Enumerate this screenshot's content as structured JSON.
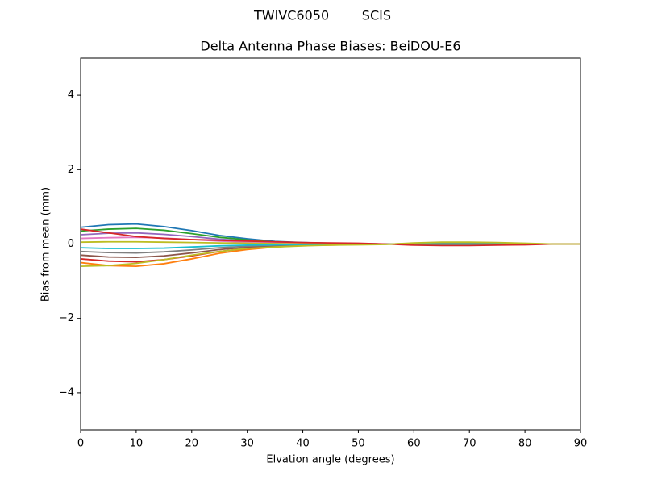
{
  "chart_data": {
    "type": "line",
    "suptitle": "TWIVC6050        SCIS",
    "title": "Delta Antenna Phase Biases: BeiDOU-E6",
    "xlabel": "Elvation angle (degrees)",
    "ylabel": "Bias from mean (mm)",
    "x": [
      0,
      5,
      10,
      15,
      20,
      25,
      30,
      35,
      40,
      45,
      50,
      55,
      60,
      65,
      70,
      75,
      80,
      85,
      90
    ],
    "xlim": [
      0,
      90
    ],
    "xticks": [
      0,
      10,
      20,
      30,
      40,
      50,
      60,
      70,
      80,
      90
    ],
    "ylim": [
      -5,
      5
    ],
    "yticks": [
      {
        "value": -4,
        "label": "−4"
      },
      {
        "value": -2,
        "label": "−2"
      },
      0,
      2,
      4
    ],
    "series": [
      {
        "color": "#1f77b4",
        "values": [
          0.45,
          0.52,
          0.54,
          0.47,
          0.36,
          0.23,
          0.14,
          0.07,
          0.04,
          0.02,
          0.01,
          0,
          -0.01,
          -0.01,
          -0.01,
          -0.01,
          0,
          0,
          0
        ]
      },
      {
        "color": "#ff7f0e",
        "values": [
          -0.5,
          -0.58,
          -0.6,
          -0.53,
          -0.4,
          -0.25,
          -0.15,
          -0.08,
          -0.04,
          -0.03,
          -0.01,
          0,
          0.01,
          0.02,
          0.02,
          0.01,
          0.01,
          0,
          0
        ]
      },
      {
        "color": "#2ca02c",
        "values": [
          0.35,
          0.4,
          0.42,
          0.37,
          0.28,
          0.18,
          0.11,
          0.05,
          0.03,
          0.02,
          0.01,
          0,
          -0.01,
          -0.01,
          -0.01,
          -0.01,
          0,
          0,
          0
        ]
      },
      {
        "color": "#d62728",
        "values": [
          -0.4,
          -0.46,
          -0.48,
          -0.42,
          -0.32,
          -0.2,
          -0.12,
          -0.06,
          -0.03,
          -0.02,
          -0.01,
          0,
          0.01,
          0.01,
          0.01,
          0.01,
          0,
          0,
          0
        ]
      },
      {
        "color": "#9467bd",
        "values": [
          0.25,
          0.29,
          0.3,
          0.26,
          0.2,
          0.13,
          0.08,
          0.04,
          0.02,
          0.01,
          0.01,
          0,
          -0.01,
          -0.01,
          -0.01,
          -0.01,
          0,
          0,
          0
        ]
      },
      {
        "color": "#8c564b",
        "values": [
          -0.3,
          -0.35,
          -0.36,
          -0.32,
          -0.24,
          -0.15,
          -0.09,
          -0.05,
          -0.02,
          -0.02,
          -0.01,
          0,
          0.01,
          0.01,
          0.01,
          0.01,
          0,
          0,
          0
        ]
      },
      {
        "color": "#e377c2",
        "values": [
          0.15,
          0.17,
          0.18,
          0.16,
          0.12,
          0.08,
          0.05,
          0.02,
          0.01,
          0.01,
          0,
          0,
          0,
          0,
          0,
          0,
          0,
          0,
          0
        ]
      },
      {
        "color": "#7f7f7f",
        "values": [
          -0.2,
          -0.23,
          -0.24,
          -0.21,
          -0.16,
          -0.1,
          -0.06,
          -0.03,
          -0.02,
          -0.01,
          0,
          0,
          0,
          0.01,
          0.01,
          0,
          0,
          0,
          0
        ]
      },
      {
        "color": "#bcbd22",
        "values": [
          0.05,
          0.06,
          0.06,
          0.05,
          0.04,
          0.03,
          0.02,
          0.01,
          0,
          0,
          0,
          0,
          0,
          0,
          0,
          0,
          0,
          0,
          0
        ]
      },
      {
        "color": "#17becf",
        "values": [
          -0.1,
          -0.12,
          -0.12,
          -0.11,
          -0.08,
          -0.05,
          -0.03,
          -0.02,
          -0.01,
          -0.01,
          0,
          0,
          0,
          0,
          0,
          0,
          0,
          0,
          0
        ]
      },
      {
        "color": "#d62728",
        "values": [
          0.4,
          0.3,
          0.2,
          0.15,
          0.12,
          0.1,
          0.08,
          0.06,
          0.04,
          0.03,
          0.02,
          0,
          -0.03,
          -0.04,
          -0.04,
          -0.03,
          -0.02,
          0,
          0
        ]
      },
      {
        "color": "#bcbd22",
        "values": [
          -0.6,
          -0.58,
          -0.52,
          -0.42,
          -0.3,
          -0.2,
          -0.12,
          -0.08,
          -0.05,
          -0.03,
          -0.02,
          -0.01,
          0.03,
          0.05,
          0.05,
          0.04,
          0.02,
          0,
          0
        ]
      }
    ]
  }
}
